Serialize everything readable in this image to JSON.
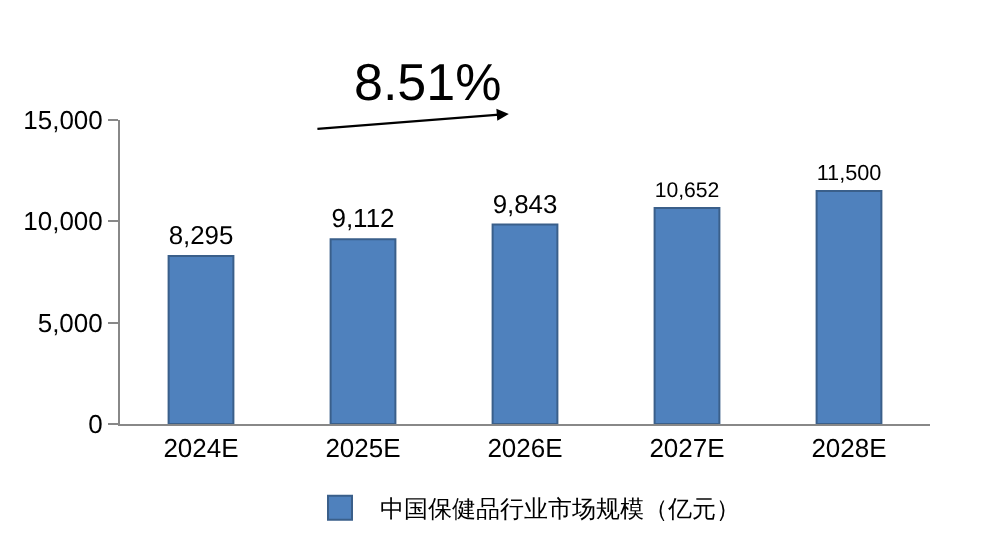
{
  "chart_data": {
    "type": "bar",
    "categories": [
      "2024E",
      "2025E",
      "2026E",
      "2027E",
      "2028E"
    ],
    "series": [
      {
        "name": "中国保健品行业市场规模（亿元）",
        "color": "#4f81bd",
        "values": [
          8295,
          9112,
          9843,
          10652,
          11500
        ]
      }
    ],
    "value_labels": [
      "8,295",
      "9,112",
      "9,843",
      "10,652",
      "11,500"
    ],
    "ylim": [
      0,
      15000
    ],
    "yticks": [
      {
        "value": 0,
        "label": "0"
      },
      {
        "value": 5000,
        "label": "5,000"
      },
      {
        "value": 10000,
        "label": "10,000"
      },
      {
        "value": 15000,
        "label": "15,000"
      }
    ],
    "annotations": [
      "8.51%"
    ],
    "grid": false,
    "legend": "bottom"
  }
}
